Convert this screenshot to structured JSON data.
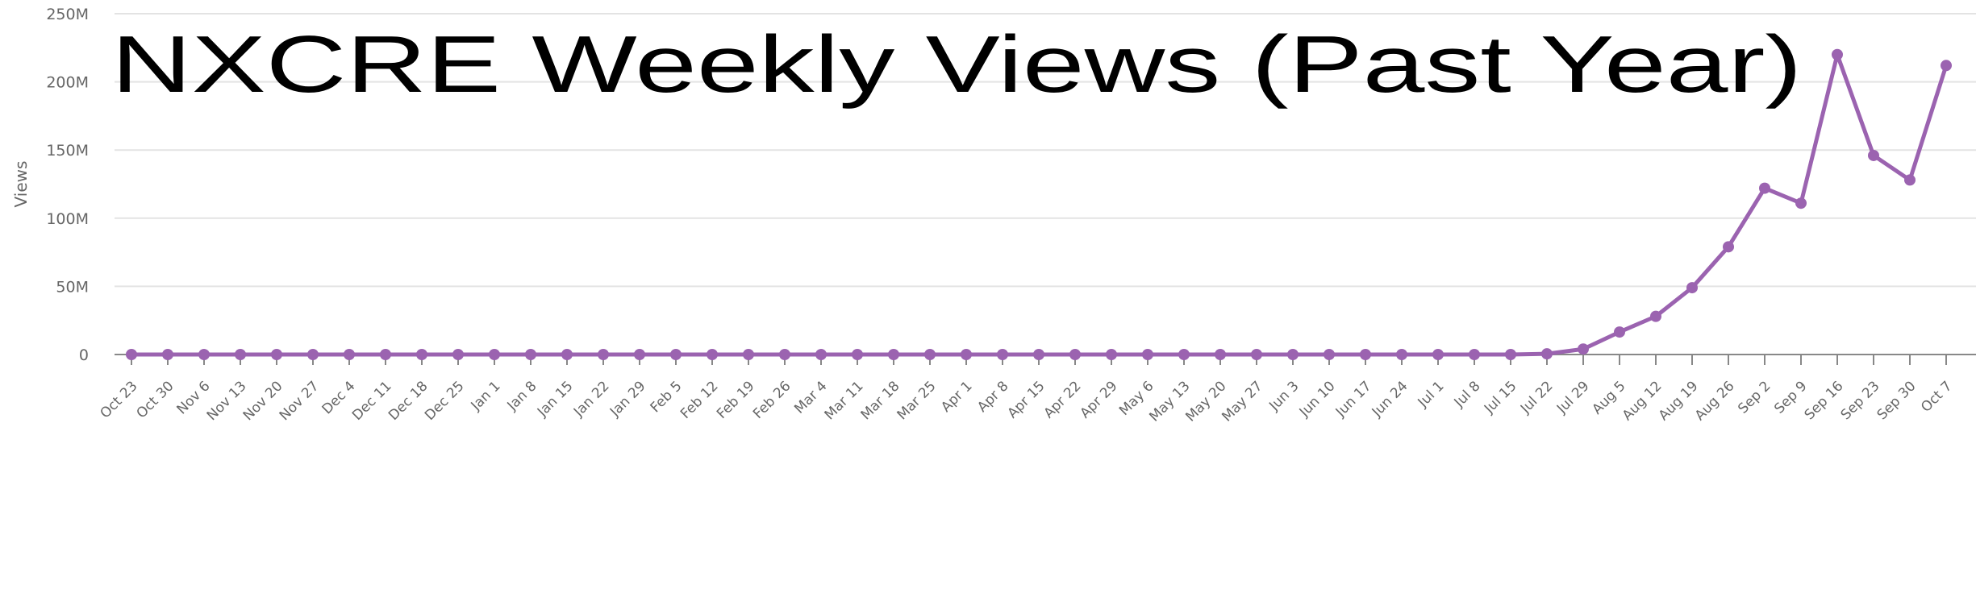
{
  "chart_data": {
    "type": "line",
    "title": "NXCRE Weekly Views (Past Year)",
    "xlabel": "",
    "ylabel": "Views",
    "ylim": [
      0,
      250000000
    ],
    "yticks": [
      0,
      50000000,
      100000000,
      150000000,
      200000000,
      250000000
    ],
    "ytick_labels": [
      "0",
      "50M",
      "100M",
      "150M",
      "200M",
      "250M"
    ],
    "grid": true,
    "color": "#9b63b0",
    "categories": [
      "Oct 23",
      "Oct 30",
      "Nov 6",
      "Nov 13",
      "Nov 20",
      "Nov 27",
      "Dec 4",
      "Dec 11",
      "Dec 18",
      "Dec 25",
      "Jan 1",
      "Jan 8",
      "Jan 15",
      "Jan 22",
      "Jan 29",
      "Feb 5",
      "Feb 12",
      "Feb 19",
      "Feb 26",
      "Mar 4",
      "Mar 11",
      "Mar 18",
      "Mar 25",
      "Apr 1",
      "Apr 8",
      "Apr 15",
      "Apr 22",
      "Apr 29",
      "May 6",
      "May 13",
      "May 20",
      "May 27",
      "Jun 3",
      "Jun 10",
      "Jun 17",
      "Jun 24",
      "Jul 1",
      "Jul 8",
      "Jul 15",
      "Jul 22",
      "Jul 29",
      "Aug 5",
      "Aug 12",
      "Aug 19",
      "Aug 26",
      "Sep 2",
      "Sep 9",
      "Sep 16",
      "Sep 23",
      "Sep 30",
      "Oct 7"
    ],
    "values": [
      0,
      0,
      0,
      0,
      0,
      0,
      0,
      0,
      0,
      0,
      0,
      0,
      0,
      0,
      0,
      0,
      0,
      0,
      0,
      0,
      0,
      0,
      0,
      0,
      0,
      0,
      0,
      0,
      0,
      0,
      0,
      0,
      0,
      0,
      0,
      0,
      0,
      0,
      0,
      500000,
      4000000,
      16500000,
      28000000,
      49000000,
      79000000,
      122000000,
      111000000,
      220000000,
      146000000,
      128000000,
      212000000
    ]
  }
}
